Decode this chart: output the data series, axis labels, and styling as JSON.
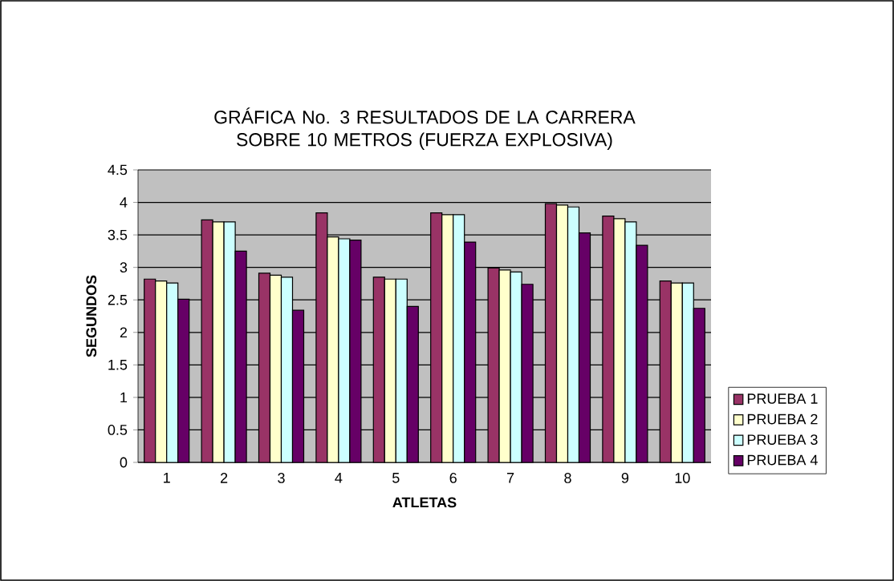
{
  "chart_data": {
    "type": "bar",
    "title": "GRÁFICA No. 3 RESULTADOS DE LA CARRERA SOBRE 10 METROS (FUERZA EXPLOSIVA)",
    "xlabel": "ATLETAS",
    "ylabel": "SEGUNDOS",
    "categories": [
      "1",
      "2",
      "3",
      "4",
      "5",
      "6",
      "7",
      "8",
      "9",
      "10"
    ],
    "series": [
      {
        "name": "PRUEBA 1",
        "color": "#993366",
        "values": [
          2.82,
          3.73,
          2.91,
          3.84,
          2.85,
          3.84,
          2.99,
          3.98,
          3.79,
          2.79
        ]
      },
      {
        "name": "PRUEBA 2",
        "color": "#ffffcc",
        "values": [
          2.79,
          3.7,
          2.88,
          3.47,
          2.82,
          3.81,
          2.96,
          3.96,
          3.75,
          2.76
        ]
      },
      {
        "name": "PRUEBA 3",
        "color": "#ccffff",
        "values": [
          2.76,
          3.7,
          2.85,
          3.44,
          2.82,
          3.81,
          2.93,
          3.93,
          3.7,
          2.76
        ]
      },
      {
        "name": "PRUEBA 4",
        "color": "#660066",
        "values": [
          2.51,
          3.25,
          2.34,
          3.42,
          2.4,
          3.39,
          2.74,
          3.53,
          3.34,
          2.37
        ]
      }
    ],
    "ylim": [
      0,
      4.5
    ],
    "yticks": [
      0,
      0.5,
      1,
      1.5,
      2,
      2.5,
      3,
      3.5,
      4,
      4.5
    ],
    "grid": "y",
    "legend": "right"
  }
}
